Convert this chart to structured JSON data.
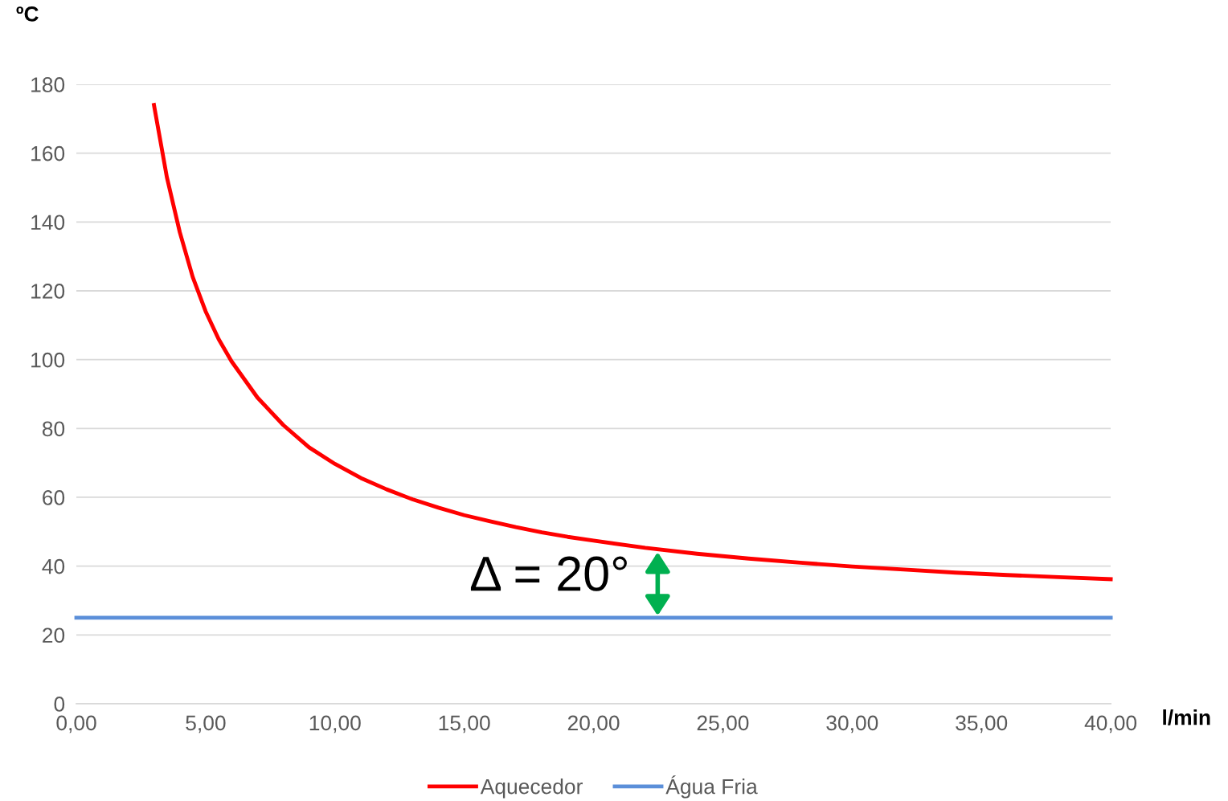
{
  "chart_data": {
    "type": "line",
    "xlabel": "l/min",
    "ylabel": "ºC",
    "xlim": [
      0,
      40
    ],
    "ylim": [
      0,
      180
    ],
    "xticks": [
      {
        "value": 0,
        "label": "0,00"
      },
      {
        "value": 5,
        "label": "5,00"
      },
      {
        "value": 10,
        "label": "10,00"
      },
      {
        "value": 15,
        "label": "15,00"
      },
      {
        "value": 20,
        "label": "20,00"
      },
      {
        "value": 25,
        "label": "25,00"
      },
      {
        "value": 30,
        "label": "30,00"
      },
      {
        "value": 35,
        "label": "35,00"
      },
      {
        "value": 40,
        "label": "40,00"
      }
    ],
    "yticks": [
      0,
      20,
      40,
      60,
      80,
      100,
      120,
      140,
      160,
      180
    ],
    "grid": "y",
    "legend": "bottom",
    "marker": "none",
    "line_style": "solid",
    "series": [
      {
        "name": "Aquecedor",
        "color": "#ff0000",
        "x": [
          3,
          3.5,
          4,
          4.5,
          5,
          5.5,
          6,
          7,
          8,
          9,
          10,
          11,
          12,
          13,
          14,
          15,
          16,
          17,
          18,
          19,
          20,
          22,
          24,
          26,
          28,
          30,
          32,
          34,
          36,
          38,
          40
        ],
        "values": [
          174,
          153,
          137,
          124,
          114,
          106,
          99.5,
          89,
          81,
          74.5,
          69.7,
          65.6,
          62.3,
          59.4,
          57,
          54.8,
          53,
          51.3,
          49.8,
          48.5,
          47.4,
          45.3,
          43.6,
          42.2,
          41,
          39.9,
          39,
          38.1,
          37.4,
          36.8,
          36.2
        ]
      },
      {
        "name": "Água Fria",
        "color": "#5b8fd9",
        "x": [
          0,
          40
        ],
        "values": [
          25,
          25
        ]
      }
    ],
    "annotations": [
      "Δ = 20°"
    ]
  }
}
